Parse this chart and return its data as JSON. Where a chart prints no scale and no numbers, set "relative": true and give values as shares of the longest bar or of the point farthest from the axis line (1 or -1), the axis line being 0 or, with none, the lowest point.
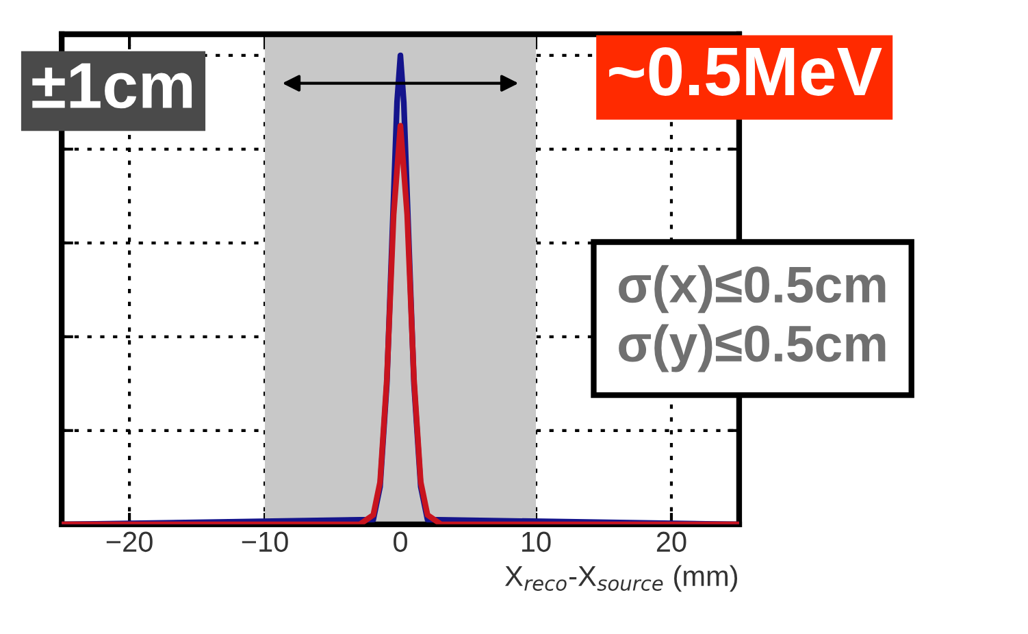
{
  "chart_data": {
    "type": "line",
    "xlabel": "X$_{reco}$-X$_{source}$ (mm)",
    "relative": true,
    "xlim": [
      -25,
      25
    ],
    "xticks": [
      {
        "value": -20,
        "label": "−20"
      },
      {
        "value": -10,
        "label": "−10"
      },
      0,
      10,
      20
    ],
    "grid": true,
    "line_style": "solid",
    "marker": "none",
    "series": [
      {
        "color": "#14148c",
        "x": [
          -25,
          -2,
          -1.5,
          -1,
          -0.5,
          -0.25,
          0,
          0.25,
          0.5,
          1,
          1.5,
          2,
          25
        ],
        "values": [
          0,
          0.01,
          0.08,
          0.3,
          0.7,
          0.9,
          1,
          0.9,
          0.7,
          0.3,
          0.08,
          0.01,
          0
        ]
      },
      {
        "color": "#c8141e",
        "x": [
          -25,
          -3,
          -2.5,
          -2,
          -1.5,
          -1,
          -0.5,
          0,
          0.5,
          1,
          1.5,
          2,
          2.5,
          3,
          25
        ],
        "values": [
          0,
          0,
          0.01,
          0.02,
          0.09,
          0.31,
          0.66,
          0.85,
          0.66,
          0.31,
          0.09,
          0.02,
          0.01,
          0,
          0
        ]
      }
    ],
    "bands": [
      {
        "axis": "x",
        "from": -10,
        "to": 10,
        "label": "±1cm",
        "color": "#c8c8c8"
      }
    ],
    "annotations": [
      "~0.5MeV",
      "σ(x)≤0.5cm\nσ(y)≤0.5cm"
    ]
  }
}
